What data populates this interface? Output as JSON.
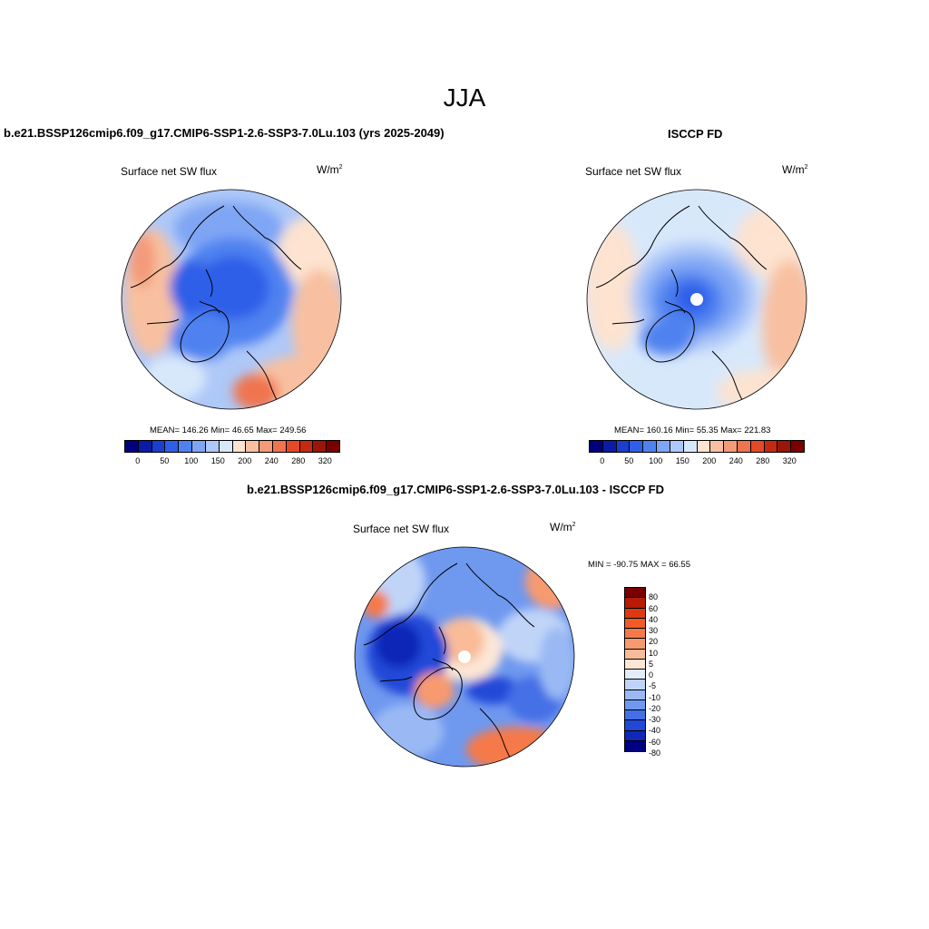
{
  "figure": {
    "title": "JJA"
  },
  "panels": {
    "model": {
      "title": "b.e21.BSSP126cmip6.f09_g17.CMIP6-SSP1-2.6-SSP3-7.0Lu.103 (yrs 2025-2049)",
      "variable": "Surface net SW flux",
      "units_base": "W/m",
      "units_exp": "2",
      "stats": "MEAN= 146.26  Min=  46.65  Max= 249.56"
    },
    "obs": {
      "title": "ISCCP FD",
      "variable": "Surface net SW flux",
      "units_base": "W/m",
      "units_exp": "2",
      "stats": "MEAN= 160.16  Min=  55.35  Max= 221.83"
    },
    "diff": {
      "title": "b.e21.BSSP126cmip6.f09_g17.CMIP6-SSP1-2.6-SSP3-7.0Lu.103 - ISCCP FD",
      "variable": "Surface net SW flux",
      "units_base": "W/m",
      "units_exp": "2",
      "stats": "MIN = -90.75 MAX =  66.55"
    }
  },
  "colorbar_abs": {
    "colors": [
      "#00007f",
      "#0a1ba8",
      "#1a3ed0",
      "#2f5fe8",
      "#4f82f0",
      "#7fa6f4",
      "#aec8f8",
      "#d8e8fb",
      "#fde3d0",
      "#f8c0a0",
      "#f49a78",
      "#ef7450",
      "#e44a28",
      "#c52a10",
      "#9c1608",
      "#7a0000"
    ],
    "ticks": [
      "0",
      "50",
      "100",
      "150",
      "200",
      "240",
      "280",
      "320"
    ]
  },
  "colorbar_diff": {
    "colors": [
      "#7a0000",
      "#b81a04",
      "#dd3a12",
      "#f25a28",
      "#f5794a",
      "#f79a70",
      "#f9bb98",
      "#fde6d6",
      "#e2ecfa",
      "#c0d4f8",
      "#9ab9f4",
      "#6f98ef",
      "#4470e6",
      "#2248d8",
      "#1028b8",
      "#000080"
    ],
    "ticks": [
      "80",
      "60",
      "40",
      "30",
      "20",
      "10",
      "5",
      "0",
      "-5",
      "-10",
      "-20",
      "-30",
      "-40",
      "-60",
      "-80"
    ]
  },
  "chart_data": [
    {
      "type": "heatmap",
      "title": "b.e21.BSSP126cmip6.f09_g17.CMIP6-SSP1-2.6-SSP3-7.0Lu.103 (yrs 2025-2049)",
      "variable": "Surface net SW flux",
      "units": "W/m2",
      "projection": "north polar stereographic",
      "mean": 146.26,
      "min": 46.65,
      "max": 249.56,
      "levels": [
        0,
        25,
        50,
        75,
        100,
        125,
        150,
        175,
        200,
        220,
        240,
        260,
        280,
        300,
        320
      ]
    },
    {
      "type": "heatmap",
      "title": "ISCCP FD",
      "variable": "Surface net SW flux",
      "units": "W/m2",
      "projection": "north polar stereographic",
      "mean": 160.16,
      "min": 55.35,
      "max": 221.83,
      "levels": [
        0,
        25,
        50,
        75,
        100,
        125,
        150,
        175,
        200,
        220,
        240,
        260,
        280,
        300,
        320
      ]
    },
    {
      "type": "heatmap",
      "title": "b.e21.BSSP126cmip6.f09_g17.CMIP6-SSP1-2.6-SSP3-7.0Lu.103 - ISCCP FD",
      "variable": "Surface net SW flux",
      "units": "W/m2",
      "projection": "north polar stereographic",
      "min": -90.75,
      "max": 66.55,
      "levels": [
        -80,
        -60,
        -40,
        -30,
        -20,
        -10,
        -5,
        0,
        5,
        10,
        20,
        30,
        40,
        60,
        80
      ]
    }
  ]
}
